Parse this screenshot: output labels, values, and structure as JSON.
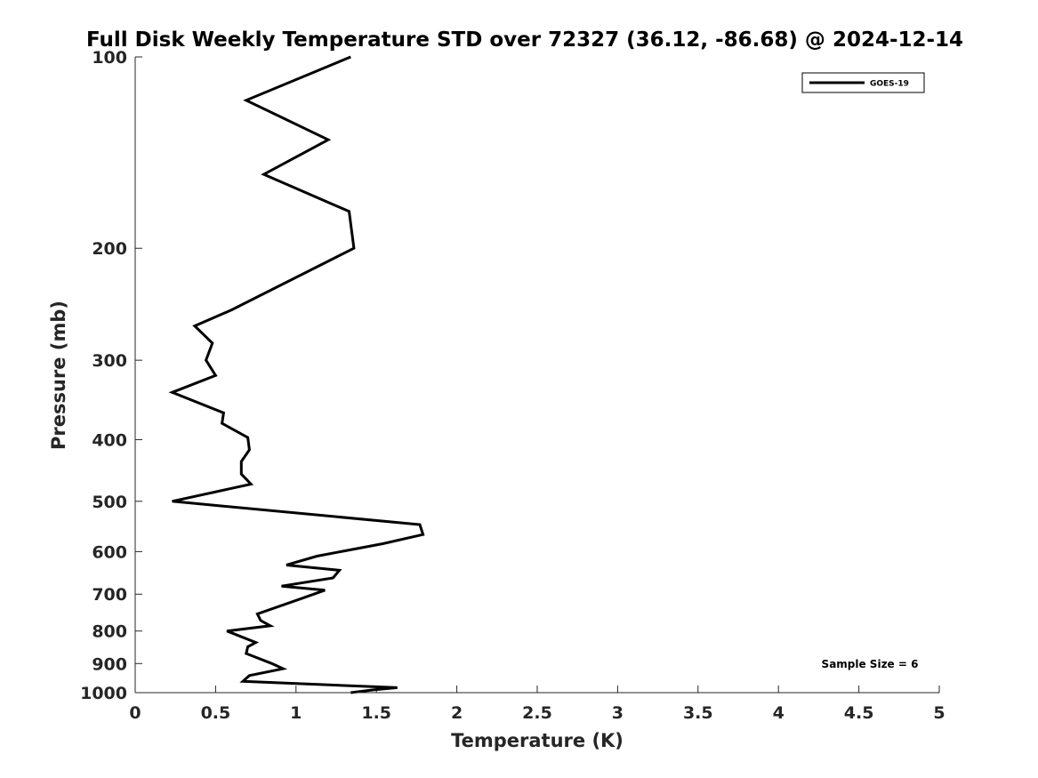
{
  "chart_data": {
    "type": "line",
    "title": "Full Disk Weekly Temperature STD over 72327 (36.12, -86.68) @ 2024-12-14",
    "xlabel": "Temperature (K)",
    "ylabel": "Pressure (mb)",
    "xlim": [
      0,
      5
    ],
    "ylim": [
      100,
      1000
    ],
    "y_scale": "log",
    "y_reversed": true,
    "x_ticks": [
      0,
      0.5,
      1,
      1.5,
      2,
      2.5,
      3,
      3.5,
      4,
      4.5,
      5
    ],
    "x_tick_labels": [
      "0",
      "0.5",
      "1",
      "1.5",
      "2",
      "2.5",
      "3",
      "3.5",
      "4",
      "4.5",
      "5"
    ],
    "y_ticks": [
      100,
      200,
      300,
      400,
      500,
      600,
      700,
      800,
      900,
      1000
    ],
    "y_tick_labels": [
      "100",
      "200",
      "300",
      "400",
      "500",
      "600",
      "700",
      "800",
      "900",
      "1000"
    ],
    "grid": false,
    "legend_position": "top-right",
    "annotation": "Sample Size = 6",
    "series": [
      {
        "name": "GOES-19",
        "color": "#000000",
        "points": [
          [
            1.34,
            100
          ],
          [
            0.69,
            117
          ],
          [
            1.2,
            135
          ],
          [
            0.8,
            153
          ],
          [
            1.33,
            175
          ],
          [
            1.36,
            200
          ],
          [
            0.6,
            250
          ],
          [
            0.37,
            265
          ],
          [
            0.48,
            282
          ],
          [
            0.44,
            300
          ],
          [
            0.5,
            317
          ],
          [
            0.23,
            337
          ],
          [
            0.55,
            363
          ],
          [
            0.54,
            377
          ],
          [
            0.7,
            397
          ],
          [
            0.71,
            415
          ],
          [
            0.66,
            433
          ],
          [
            0.66,
            453
          ],
          [
            0.72,
            470
          ],
          [
            0.23,
            500
          ],
          [
            1.77,
            544
          ],
          [
            1.79,
            564
          ],
          [
            1.54,
            583
          ],
          [
            1.13,
            610
          ],
          [
            0.94,
            630
          ],
          [
            1.27,
            642
          ],
          [
            1.23,
            660
          ],
          [
            0.91,
            680
          ],
          [
            1.18,
            690
          ],
          [
            1.0,
            716
          ],
          [
            0.76,
            752
          ],
          [
            0.78,
            770
          ],
          [
            0.84,
            785
          ],
          [
            0.57,
            800
          ],
          [
            0.75,
            834
          ],
          [
            0.7,
            847
          ],
          [
            0.69,
            868
          ],
          [
            0.85,
            900
          ],
          [
            0.92,
            917
          ],
          [
            0.71,
            940
          ],
          [
            0.67,
            960
          ],
          [
            1.63,
            982
          ],
          [
            1.48,
            990
          ],
          [
            1.34,
            1000
          ]
        ]
      }
    ]
  }
}
